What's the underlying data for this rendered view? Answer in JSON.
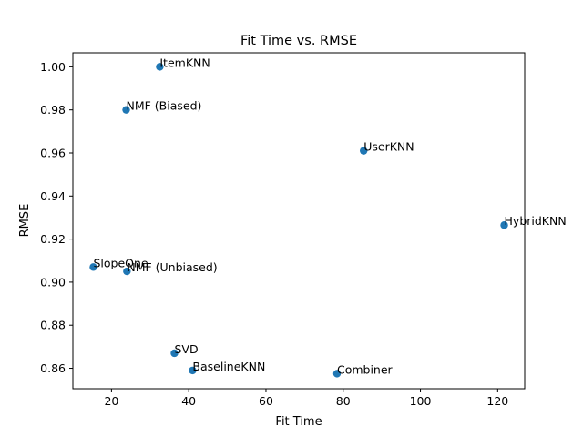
{
  "chart_data": {
    "type": "scatter",
    "title": "Fit Time vs. RMSE",
    "xlabel": "Fit Time",
    "ylabel": "RMSE",
    "xlim": [
      10,
      127
    ],
    "ylim": [
      0.8505,
      1.0065
    ],
    "xticks": [
      20,
      40,
      60,
      80,
      100,
      120
    ],
    "yticks": [
      0.86,
      0.88,
      0.9,
      0.92,
      0.94,
      0.96,
      0.98,
      1.0
    ],
    "xtick_labels": [
      "20",
      "40",
      "60",
      "80",
      "100",
      "120"
    ],
    "ytick_labels": [
      "0.86",
      "0.88",
      "0.90",
      "0.92",
      "0.94",
      "0.96",
      "0.98",
      "1.00"
    ],
    "grid": false,
    "marker_color": "#1f77b4",
    "points": [
      {
        "label": "ItemKNN",
        "x": 32.5,
        "y": 1.0
      },
      {
        "label": "NMF (Biased)",
        "x": 23.8,
        "y": 0.98
      },
      {
        "label": "UserKNN",
        "x": 85.3,
        "y": 0.961
      },
      {
        "label": "HybridKNN",
        "x": 121.7,
        "y": 0.9265
      },
      {
        "label": "SlopeOne",
        "x": 15.3,
        "y": 0.907
      },
      {
        "label": "NMF (Unbiased)",
        "x": 24.0,
        "y": 0.905
      },
      {
        "label": "SVD",
        "x": 36.3,
        "y": 0.867
      },
      {
        "label": "BaselineKNN",
        "x": 41.0,
        "y": 0.859
      },
      {
        "label": "Combiner",
        "x": 78.4,
        "y": 0.8575
      }
    ]
  }
}
